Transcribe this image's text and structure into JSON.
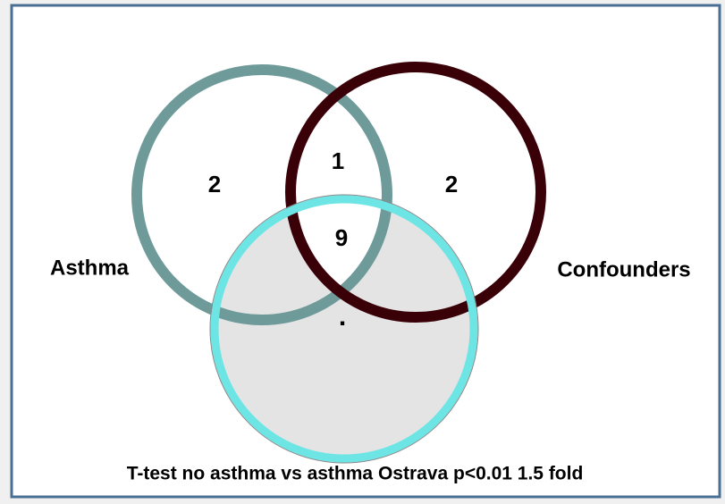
{
  "sets": [
    {
      "label": "Asthma"
    },
    {
      "label": "Confounders"
    }
  ],
  "regions": {
    "asthma_only": "2",
    "asthma_confounders_top": "1",
    "confounders_only": "2",
    "center": "9",
    "lower": "."
  },
  "caption": "T-test no asthma vs asthma Ostrava p<0.01 1.5 fold"
}
